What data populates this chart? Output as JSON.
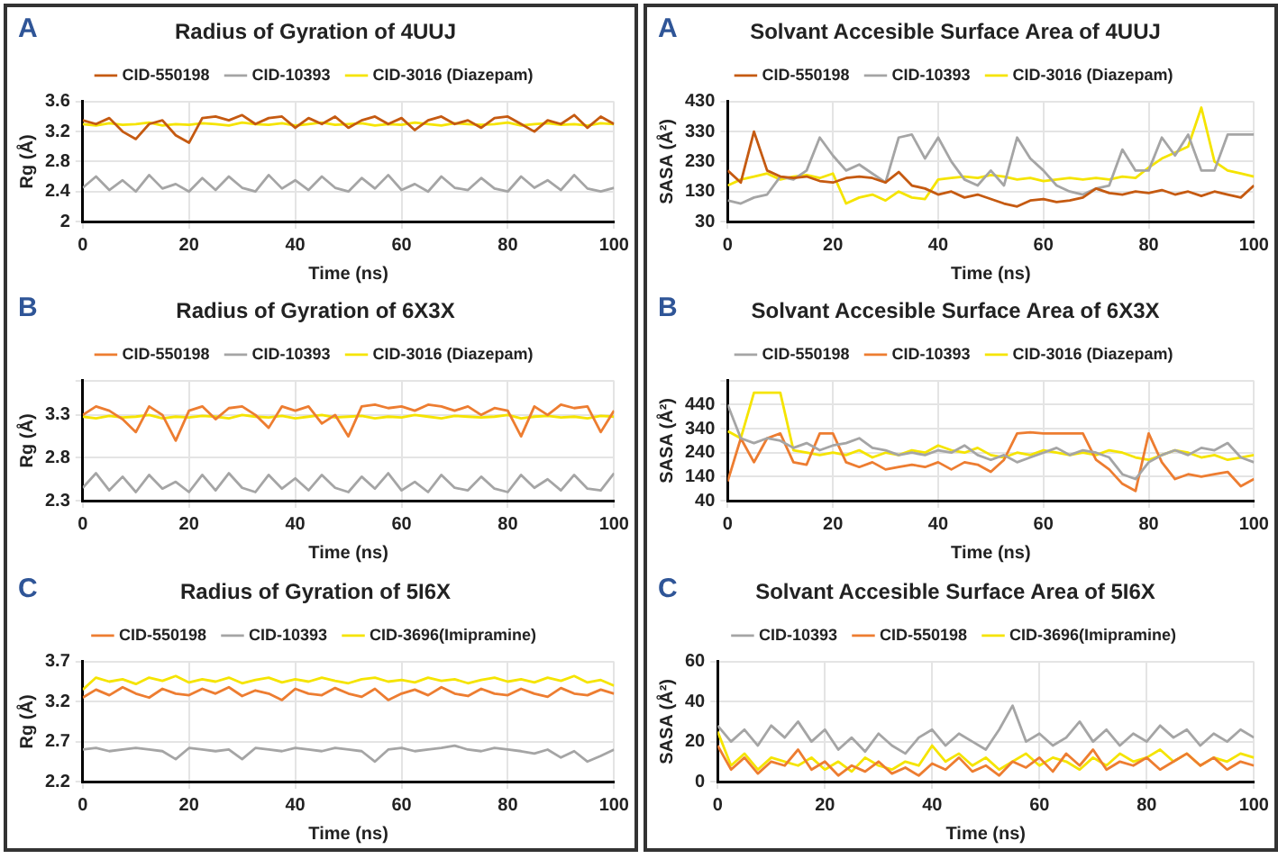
{
  "chart_data": [
    {
      "type": "line",
      "title": "Radius of Gyration of 4UUJ",
      "xlabel": "Time (ns)",
      "ylabel": "Rg (Å)",
      "annotations": [
        "A"
      ],
      "legend": "top",
      "grid": true,
      "marker": "none",
      "line_style": "solid",
      "x": [
        0,
        2.5,
        5,
        7.5,
        10,
        12.5,
        15,
        17.5,
        20,
        22.5,
        25,
        27.5,
        30,
        32.5,
        35,
        37.5,
        40,
        42.5,
        45,
        47.5,
        50,
        52.5,
        55,
        57.5,
        60,
        62.5,
        65,
        67.5,
        70,
        72.5,
        75,
        77.5,
        80,
        82.5,
        85,
        87.5,
        90,
        92.5,
        95,
        97.5,
        100
      ],
      "xlim": [
        0,
        100
      ],
      "xticks": [
        0,
        20,
        40,
        60,
        80,
        100
      ],
      "ylim": [
        2,
        3.6
      ],
      "yticks": [
        2,
        2.4,
        2.8,
        3.2,
        3.6
      ],
      "series": [
        {
          "name": "CID-550198",
          "color": "#c55a11",
          "values": [
            3.35,
            3.3,
            3.38,
            3.2,
            3.1,
            3.3,
            3.35,
            3.15,
            3.05,
            3.38,
            3.4,
            3.35,
            3.42,
            3.3,
            3.38,
            3.4,
            3.25,
            3.38,
            3.3,
            3.4,
            3.25,
            3.35,
            3.4,
            3.3,
            3.38,
            3.22,
            3.35,
            3.4,
            3.3,
            3.35,
            3.25,
            3.38,
            3.4,
            3.3,
            3.2,
            3.35,
            3.3,
            3.42,
            3.25,
            3.4,
            3.3
          ]
        },
        {
          "name": "CID-10393",
          "color": "#a5a5a5",
          "values": [
            2.45,
            2.6,
            2.42,
            2.55,
            2.4,
            2.62,
            2.44,
            2.5,
            2.4,
            2.58,
            2.42,
            2.6,
            2.45,
            2.4,
            2.62,
            2.44,
            2.55,
            2.42,
            2.6,
            2.45,
            2.4,
            2.58,
            2.44,
            2.62,
            2.42,
            2.5,
            2.4,
            2.6,
            2.45,
            2.42,
            2.58,
            2.44,
            2.4,
            2.6,
            2.45,
            2.55,
            2.42,
            2.62,
            2.44,
            2.4,
            2.45
          ]
        },
        {
          "name": "CID-3016 (Diazepam)",
          "color": "#f5e400",
          "values": [
            3.3,
            3.28,
            3.31,
            3.29,
            3.3,
            3.32,
            3.28,
            3.3,
            3.29,
            3.31,
            3.3,
            3.28,
            3.32,
            3.3,
            3.29,
            3.31,
            3.28,
            3.3,
            3.32,
            3.29,
            3.3,
            3.31,
            3.28,
            3.3,
            3.29,
            3.32,
            3.3,
            3.28,
            3.31,
            3.3,
            3.29,
            3.3,
            3.32,
            3.28,
            3.3,
            3.31,
            3.29,
            3.3,
            3.28,
            3.31,
            3.3
          ]
        }
      ]
    },
    {
      "type": "line",
      "title": "Solvant Accesible Surface Area of 4UUJ",
      "xlabel": "Time (ns)",
      "ylabel": "SASA (Å²)",
      "annotations": [
        "A"
      ],
      "legend": "top",
      "grid": true,
      "marker": "none",
      "line_style": "solid",
      "x": [
        0,
        2.5,
        5,
        7.5,
        10,
        12.5,
        15,
        17.5,
        20,
        22.5,
        25,
        27.5,
        30,
        32.5,
        35,
        37.5,
        40,
        42.5,
        45,
        47.5,
        50,
        52.5,
        55,
        57.5,
        60,
        62.5,
        65,
        67.5,
        70,
        72.5,
        75,
        77.5,
        80,
        82.5,
        85,
        87.5,
        90,
        92.5,
        95,
        97.5,
        100
      ],
      "xlim": [
        0,
        100
      ],
      "xticks": [
        0,
        20,
        40,
        60,
        80,
        100
      ],
      "ylim": [
        30,
        430
      ],
      "yticks": [
        30,
        130,
        230,
        330,
        430
      ],
      "series": [
        {
          "name": "CID-550198",
          "color": "#c55a11",
          "values": [
            200,
            160,
            330,
            200,
            180,
            175,
            180,
            165,
            160,
            175,
            180,
            175,
            160,
            195,
            150,
            140,
            120,
            130,
            110,
            120,
            105,
            90,
            80,
            100,
            105,
            95,
            100,
            110,
            140,
            125,
            120,
            130,
            125,
            135,
            120,
            130,
            115,
            130,
            120,
            110,
            150
          ]
        },
        {
          "name": "CID-10393",
          "color": "#a5a5a5",
          "values": [
            100,
            90,
            110,
            120,
            180,
            170,
            200,
            310,
            250,
            200,
            220,
            190,
            160,
            310,
            320,
            240,
            310,
            230,
            170,
            150,
            200,
            150,
            310,
            240,
            200,
            150,
            130,
            120,
            140,
            150,
            270,
            200,
            200,
            310,
            250,
            320,
            200,
            200,
            320,
            320,
            320
          ]
        },
        {
          "name": "CID-3016 (Diazepam)",
          "color": "#f5e400",
          "values": [
            150,
            170,
            180,
            190,
            170,
            180,
            185,
            175,
            190,
            90,
            110,
            120,
            100,
            130,
            110,
            105,
            170,
            175,
            180,
            175,
            185,
            180,
            170,
            175,
            165,
            170,
            175,
            170,
            175,
            170,
            180,
            175,
            210,
            240,
            260,
            280,
            410,
            230,
            200,
            190,
            180
          ]
        }
      ]
    },
    {
      "type": "line",
      "title": "Radius of Gyration of 6X3X",
      "xlabel": "Time (ns)",
      "ylabel": "Rg (Å)",
      "annotations": [
        "B"
      ],
      "legend": "top",
      "grid": true,
      "marker": "none",
      "line_style": "solid",
      "x": [
        0,
        2.5,
        5,
        7.5,
        10,
        12.5,
        15,
        17.5,
        20,
        22.5,
        25,
        27.5,
        30,
        32.5,
        35,
        37.5,
        40,
        42.5,
        45,
        47.5,
        50,
        52.5,
        55,
        57.5,
        60,
        62.5,
        65,
        67.5,
        70,
        72.5,
        75,
        77.5,
        80,
        82.5,
        85,
        87.5,
        90,
        92.5,
        95,
        97.5,
        100
      ],
      "xlim": [
        0,
        100
      ],
      "xticks": [
        0,
        20,
        40,
        60,
        80,
        100
      ],
      "ylim": [
        2.3,
        3.7
      ],
      "yticks": [
        2.3,
        2.8,
        3.3,
        {
          "value": 3.7,
          "label": null
        }
      ],
      "series": [
        {
          "name": "CID-550198",
          "color": "#ed7d31",
          "values": [
            3.3,
            3.4,
            3.35,
            3.25,
            3.1,
            3.4,
            3.3,
            3.0,
            3.35,
            3.4,
            3.25,
            3.38,
            3.4,
            3.3,
            3.15,
            3.4,
            3.35,
            3.4,
            3.2,
            3.3,
            3.05,
            3.4,
            3.42,
            3.38,
            3.4,
            3.35,
            3.42,
            3.4,
            3.35,
            3.4,
            3.3,
            3.38,
            3.35,
            3.05,
            3.4,
            3.3,
            3.42,
            3.38,
            3.4,
            3.1,
            3.35
          ]
        },
        {
          "name": "CID-10393",
          "color": "#a5a5a5",
          "values": [
            2.45,
            2.62,
            2.42,
            2.58,
            2.4,
            2.6,
            2.44,
            2.52,
            2.4,
            2.6,
            2.42,
            2.62,
            2.45,
            2.4,
            2.6,
            2.44,
            2.56,
            2.42,
            2.6,
            2.45,
            2.4,
            2.58,
            2.44,
            2.62,
            2.42,
            2.52,
            2.4,
            2.6,
            2.45,
            2.42,
            2.58,
            2.44,
            2.4,
            2.6,
            2.45,
            2.55,
            2.42,
            2.6,
            2.44,
            2.42,
            2.62
          ]
        },
        {
          "name": "CID-3016 (Diazepam)",
          "color": "#f5e400",
          "values": [
            3.28,
            3.26,
            3.29,
            3.27,
            3.28,
            3.3,
            3.26,
            3.28,
            3.27,
            3.29,
            3.28,
            3.26,
            3.3,
            3.28,
            3.27,
            3.29,
            3.26,
            3.28,
            3.3,
            3.27,
            3.28,
            3.29,
            3.26,
            3.28,
            3.27,
            3.3,
            3.28,
            3.26,
            3.29,
            3.28,
            3.27,
            3.28,
            3.3,
            3.26,
            3.28,
            3.29,
            3.27,
            3.28,
            3.26,
            3.29,
            3.28
          ]
        }
      ]
    },
    {
      "type": "line",
      "title": "Solvant Accesible Surface Area of 6X3X",
      "xlabel": "Time (ns)",
      "ylabel": "SASA (Å²)",
      "annotations": [
        "B"
      ],
      "legend": "top",
      "grid": true,
      "marker": "none",
      "line_style": "solid",
      "x": [
        0,
        2.5,
        5,
        7.5,
        10,
        12.5,
        15,
        17.5,
        20,
        22.5,
        25,
        27.5,
        30,
        32.5,
        35,
        37.5,
        40,
        42.5,
        45,
        47.5,
        50,
        52.5,
        55,
        57.5,
        60,
        62.5,
        65,
        67.5,
        70,
        72.5,
        75,
        77.5,
        80,
        82.5,
        85,
        87.5,
        90,
        92.5,
        95,
        97.5,
        100
      ],
      "xlim": [
        0,
        100
      ],
      "xticks": [
        0,
        20,
        40,
        60,
        80,
        100
      ],
      "ylim": [
        40,
        540
      ],
      "yticks": [
        40,
        140,
        240,
        340,
        440,
        {
          "value": 540,
          "label": null
        }
      ],
      "series": [
        {
          "name": "CID-550198",
          "color": "#a5a5a5",
          "values": [
            440,
            300,
            280,
            300,
            290,
            260,
            280,
            250,
            270,
            280,
            300,
            260,
            250,
            230,
            240,
            230,
            250,
            240,
            270,
            230,
            210,
            230,
            200,
            220,
            240,
            260,
            230,
            250,
            240,
            220,
            150,
            130,
            200,
            230,
            250,
            230,
            260,
            250,
            280,
            220,
            200
          ]
        },
        {
          "name": "CID-10393",
          "color": "#ed7d31",
          "values": [
            120,
            300,
            200,
            300,
            320,
            200,
            190,
            320,
            320,
            200,
            180,
            200,
            170,
            180,
            190,
            180,
            200,
            170,
            200,
            190,
            160,
            210,
            320,
            325,
            320,
            320,
            320,
            320,
            210,
            170,
            110,
            80,
            320,
            200,
            130,
            150,
            140,
            150,
            160,
            100,
            130
          ]
        },
        {
          "name": "CID-3016 (Diazepam)",
          "color": "#f5e400",
          "values": [
            330,
            300,
            490,
            490,
            490,
            250,
            240,
            230,
            240,
            230,
            250,
            220,
            240,
            230,
            250,
            240,
            270,
            250,
            240,
            260,
            230,
            220,
            240,
            230,
            250,
            240,
            230,
            240,
            230,
            250,
            240,
            220,
            210,
            230,
            250,
            240,
            220,
            230,
            210,
            220,
            230
          ]
        }
      ]
    },
    {
      "type": "line",
      "title": "Radius of Gyration of 5I6X",
      "xlabel": "Time (ns)",
      "ylabel": "Rg (Å)",
      "annotations": [
        "C"
      ],
      "legend": "top",
      "grid": true,
      "marker": "none",
      "line_style": "solid",
      "x": [
        0,
        2.5,
        5,
        7.5,
        10,
        12.5,
        15,
        17.5,
        20,
        22.5,
        25,
        27.5,
        30,
        32.5,
        35,
        37.5,
        40,
        42.5,
        45,
        47.5,
        50,
        52.5,
        55,
        57.5,
        60,
        62.5,
        65,
        67.5,
        70,
        72.5,
        75,
        77.5,
        80,
        82.5,
        85,
        87.5,
        90,
        92.5,
        95,
        97.5,
        100
      ],
      "xlim": [
        0,
        100
      ],
      "xticks": [
        0,
        20,
        40,
        60,
        80,
        100
      ],
      "ylim": [
        2.2,
        3.7
      ],
      "yticks": [
        2.2,
        2.7,
        3.2,
        3.7
      ],
      "series": [
        {
          "name": "CID-550198",
          "color": "#ed7d31",
          "values": [
            3.25,
            3.35,
            3.28,
            3.38,
            3.3,
            3.25,
            3.36,
            3.3,
            3.28,
            3.36,
            3.3,
            3.38,
            3.27,
            3.34,
            3.3,
            3.22,
            3.36,
            3.3,
            3.28,
            3.37,
            3.3,
            3.26,
            3.36,
            3.22,
            3.3,
            3.35,
            3.28,
            3.38,
            3.3,
            3.27,
            3.36,
            3.3,
            3.28,
            3.36,
            3.3,
            3.26,
            3.37,
            3.3,
            3.28,
            3.35,
            3.3
          ]
        },
        {
          "name": "CID-10393",
          "color": "#a5a5a5",
          "values": [
            2.6,
            2.62,
            2.58,
            2.6,
            2.62,
            2.6,
            2.58,
            2.48,
            2.62,
            2.6,
            2.58,
            2.6,
            2.48,
            2.62,
            2.6,
            2.58,
            2.62,
            2.6,
            2.58,
            2.62,
            2.6,
            2.58,
            2.45,
            2.6,
            2.62,
            2.58,
            2.6,
            2.62,
            2.65,
            2.6,
            2.58,
            2.62,
            2.6,
            2.58,
            2.55,
            2.6,
            2.5,
            2.58,
            2.45,
            2.52,
            2.6
          ]
        },
        {
          "name": "CID-3696(Imipramine)",
          "color": "#f5e400",
          "values": [
            3.35,
            3.5,
            3.45,
            3.48,
            3.42,
            3.5,
            3.46,
            3.52,
            3.44,
            3.48,
            3.45,
            3.5,
            3.43,
            3.47,
            3.5,
            3.44,
            3.48,
            3.45,
            3.5,
            3.46,
            3.43,
            3.48,
            3.5,
            3.45,
            3.47,
            3.44,
            3.5,
            3.46,
            3.48,
            3.43,
            3.47,
            3.5,
            3.45,
            3.48,
            3.44,
            3.5,
            3.46,
            3.52,
            3.44,
            3.47,
            3.4
          ]
        }
      ]
    },
    {
      "type": "line",
      "title": "Solvant Accesible Surface Area of 5I6X",
      "xlabel": "Time (ns)",
      "ylabel": "SASA (Å²)",
      "annotations": [
        "C"
      ],
      "legend": "top",
      "grid": true,
      "marker": "none",
      "line_style": "solid",
      "x": [
        0,
        2.5,
        5,
        7.5,
        10,
        12.5,
        15,
        17.5,
        20,
        22.5,
        25,
        27.5,
        30,
        32.5,
        35,
        37.5,
        40,
        42.5,
        45,
        47.5,
        50,
        52.5,
        55,
        57.5,
        60,
        62.5,
        65,
        67.5,
        70,
        72.5,
        75,
        77.5,
        80,
        82.5,
        85,
        87.5,
        90,
        92.5,
        95,
        97.5,
        100
      ],
      "xlim": [
        0,
        100
      ],
      "xticks": [
        0,
        20,
        40,
        60,
        80,
        100
      ],
      "ylim": [
        0,
        60
      ],
      "yticks": [
        0,
        20,
        40,
        60
      ],
      "series": [
        {
          "name": "CID-10393",
          "color": "#a5a5a5",
          "values": [
            28,
            20,
            26,
            18,
            28,
            22,
            30,
            20,
            26,
            16,
            22,
            15,
            24,
            18,
            14,
            22,
            26,
            18,
            24,
            20,
            16,
            26,
            38,
            20,
            24,
            18,
            22,
            30,
            20,
            26,
            18,
            24,
            20,
            28,
            22,
            26,
            18,
            24,
            20,
            26,
            22
          ]
        },
        {
          "name": "CID-550198",
          "color": "#ed7d31",
          "values": [
            18,
            6,
            12,
            4,
            10,
            8,
            16,
            6,
            10,
            3,
            8,
            5,
            10,
            4,
            7,
            3,
            9,
            6,
            12,
            5,
            8,
            3,
            10,
            7,
            12,
            5,
            14,
            8,
            16,
            6,
            10,
            8,
            12,
            6,
            10,
            14,
            8,
            12,
            6,
            10,
            8
          ]
        },
        {
          "name": "CID-3696(Imipramine)",
          "color": "#f5e400",
          "values": [
            25,
            8,
            14,
            6,
            12,
            10,
            8,
            12,
            6,
            10,
            5,
            12,
            8,
            6,
            10,
            8,
            18,
            10,
            14,
            8,
            12,
            6,
            10,
            14,
            8,
            12,
            10,
            6,
            12,
            8,
            14,
            10,
            12,
            16,
            10,
            14,
            8,
            12,
            10,
            14,
            12
          ]
        }
      ]
    }
  ]
}
